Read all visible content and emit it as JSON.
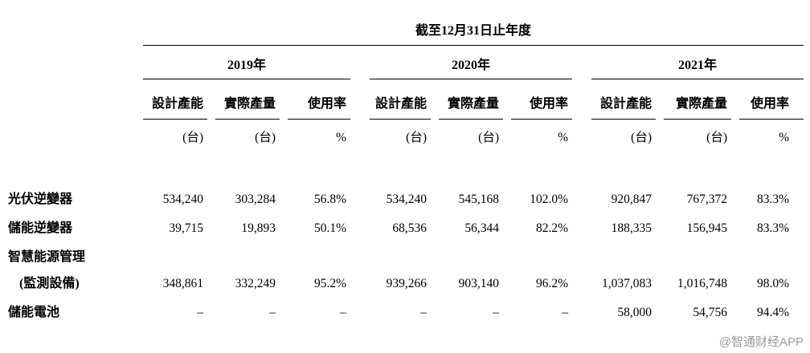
{
  "table": {
    "title": "截至12月31日止年度",
    "year_groups": [
      {
        "label": "2019年"
      },
      {
        "label": "2020年"
      },
      {
        "label": "2021年"
      }
    ],
    "columns": [
      "設計產能",
      "實際產量",
      "使用率"
    ],
    "units": [
      "(台)",
      "(台)",
      "%"
    ],
    "rows": [
      {
        "label_lines": [
          "光伏逆變器"
        ],
        "values": [
          "534,240",
          "303,284",
          "56.8%",
          "534,240",
          "545,168",
          "102.0%",
          "920,847",
          "767,372",
          "83.3%"
        ]
      },
      {
        "label_lines": [
          "儲能逆變器"
        ],
        "values": [
          "39,715",
          "19,893",
          "50.1%",
          "68,536",
          "56,344",
          "82.2%",
          "188,335",
          "156,945",
          "83.3%"
        ]
      },
      {
        "label_lines": [
          "智慧能源管理",
          "(監測設備)"
        ],
        "values": [
          "348,861",
          "332,249",
          "95.2%",
          "939,266",
          "903,140",
          "96.2%",
          "1,037,083",
          "1,016,748",
          "98.0%"
        ]
      },
      {
        "label_lines": [
          "儲能電池"
        ],
        "values": [
          "–",
          "–",
          "–",
          "–",
          "–",
          "–",
          "58,000",
          "54,756",
          "94.4%"
        ]
      }
    ]
  },
  "watermark": "@智通财经APP"
}
